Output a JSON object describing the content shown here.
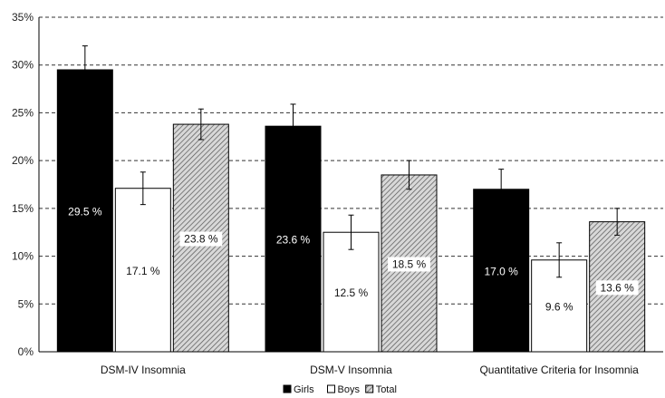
{
  "chart_data": {
    "type": "bar",
    "categories": [
      "DSM-IV Insomnia",
      "DSM-V Insomnia",
      "Quantitative Criteria for Insomnia"
    ],
    "series": [
      {
        "name": "Girls",
        "values": [
          29.5,
          23.6,
          17.0
        ],
        "labels": [
          "29.5 %",
          "23.6 %",
          "17.0 %"
        ],
        "error": [
          2.5,
          2.3,
          2.1
        ],
        "color": "#000000"
      },
      {
        "name": "Boys",
        "values": [
          17.1,
          12.5,
          9.6
        ],
        "labels": [
          "17.1 %",
          "12.5 %",
          "9.6 %"
        ],
        "error": [
          1.7,
          1.8,
          1.8
        ],
        "color": "#ffffff"
      },
      {
        "name": "Total",
        "values": [
          23.8,
          18.5,
          13.6
        ],
        "labels": [
          "23.8 %",
          "18.5 %",
          "13.6 %"
        ],
        "error": [
          1.6,
          1.5,
          1.4
        ],
        "color": "hatched-gray"
      }
    ],
    "yticks": [
      "0%",
      "5%",
      "10%",
      "15%",
      "20%",
      "25%",
      "30%",
      "35%"
    ],
    "ylim": [
      0,
      35
    ],
    "grid": "horizontal-dashed",
    "legend": "bottom-center"
  }
}
